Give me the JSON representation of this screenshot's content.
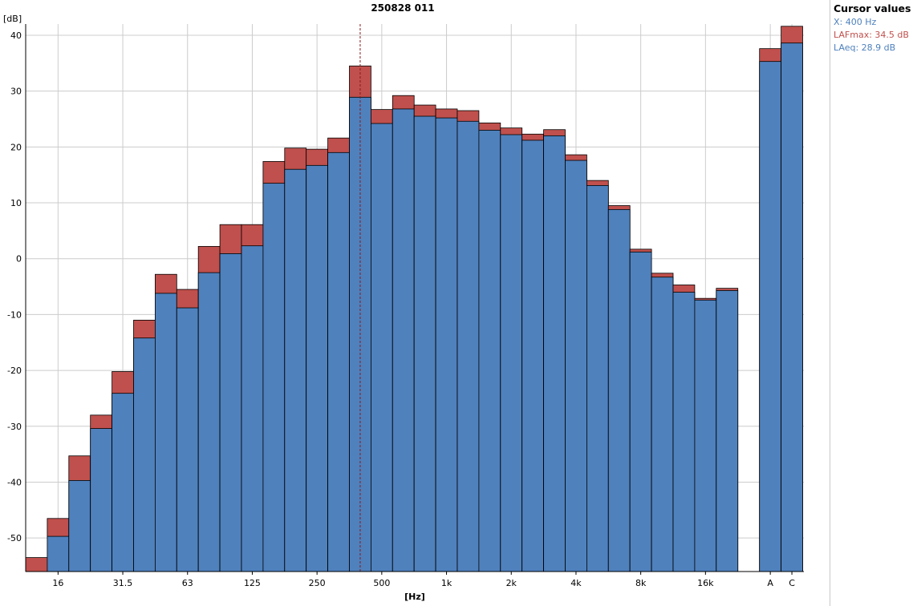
{
  "chart_data": {
    "type": "bar",
    "title": "250828 011",
    "xlabel": "[Hz]",
    "ylabel": "[dB]",
    "ylim": [
      -56,
      42
    ],
    "yticks": [
      40,
      30,
      20,
      10,
      0,
      -10,
      -20,
      -30,
      -40,
      -50
    ],
    "xtick_labels": [
      "16",
      "31.5",
      "63",
      "125",
      "250",
      "500",
      "1k",
      "2k",
      "4k",
      "8k",
      "16k",
      "A",
      "C"
    ],
    "categories": [
      "12.5",
      "16",
      "20",
      "25",
      "31.5",
      "40",
      "50",
      "63",
      "80",
      "100",
      "125",
      "160",
      "200",
      "250",
      "315",
      "400",
      "500",
      "630",
      "800",
      "1k",
      "1.25k",
      "1.6k",
      "2k",
      "2.5k",
      "3.15k",
      "4k",
      "5k",
      "6.3k",
      "8k",
      "10k",
      "12.5k",
      "16k",
      "20k",
      "A",
      "C"
    ],
    "series": [
      {
        "name": "LAFmax",
        "color": "#c0504d",
        "values": [
          -53.5,
          -46.5,
          -35.3,
          -28.0,
          -20.2,
          -11.0,
          -2.8,
          -5.5,
          2.2,
          6.1,
          6.1,
          17.4,
          19.8,
          19.6,
          21.6,
          34.5,
          26.7,
          29.2,
          27.5,
          26.8,
          26.5,
          24.3,
          23.4,
          22.3,
          23.1,
          18.6,
          14.0,
          9.5,
          1.7,
          -2.6,
          -4.7,
          -7.1,
          -5.3,
          37.6,
          41.6
        ]
      },
      {
        "name": "LAeq",
        "color": "#4f81bd",
        "values": [
          null,
          -49.7,
          -39.7,
          -30.4,
          -24.1,
          -14.2,
          -6.2,
          -8.8,
          -2.5,
          0.9,
          2.3,
          13.5,
          16.0,
          16.7,
          19.0,
          28.9,
          24.2,
          26.8,
          25.5,
          25.2,
          24.6,
          23.0,
          22.2,
          21.2,
          22.0,
          17.6,
          13.1,
          8.8,
          1.2,
          -3.3,
          -6.0,
          -7.4,
          -5.7,
          35.3,
          38.6
        ]
      }
    ],
    "cursor": {
      "category": "400"
    },
    "grid": true
  },
  "cursor_panel": {
    "title": "Cursor values",
    "x_line": "X: 400 Hz",
    "max_line": "LAFmax: 34.5 dB",
    "eq_line": "LAeq: 28.9 dB",
    "x_color": "#4f81bd",
    "max_color": "#c0504d",
    "eq_color": "#4f81bd"
  }
}
